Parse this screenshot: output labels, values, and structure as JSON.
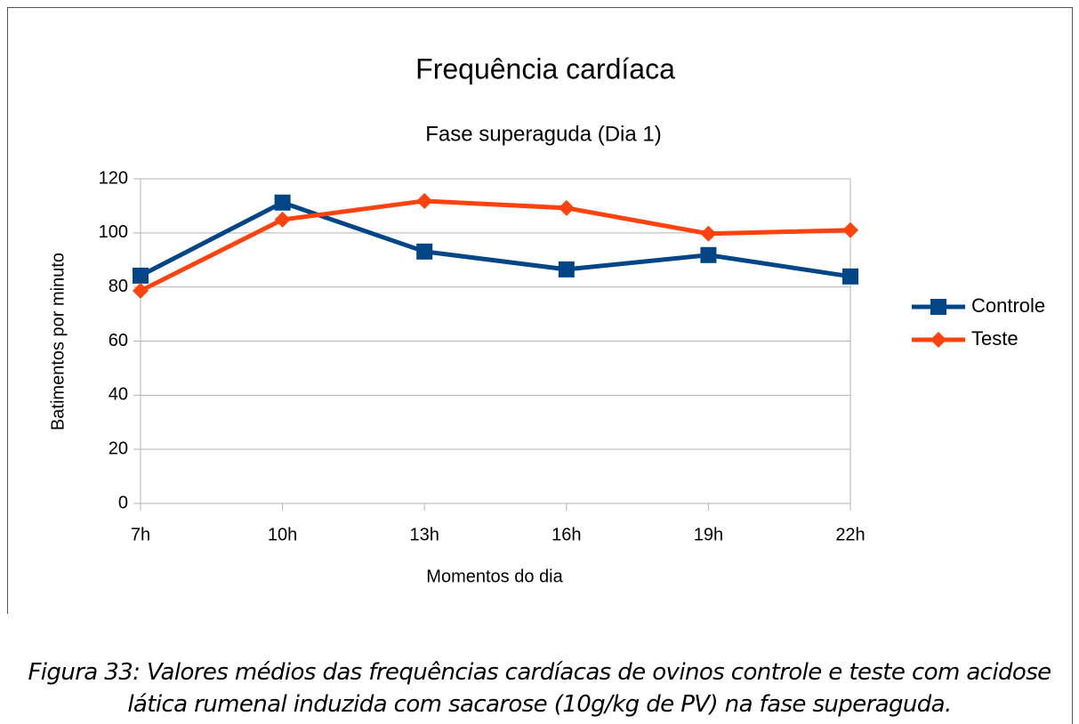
{
  "chart_data": {
    "type": "line",
    "title": "Frequência cardíaca",
    "subtitle": "Fase superaguda (Dia 1)",
    "x_label": "Momentos do dia",
    "y_label": "Batimentos por minuto",
    "categories": [
      "7h",
      "10h",
      "13h",
      "16h",
      "19h",
      "22h"
    ],
    "series": [
      {
        "name": "Controle",
        "color": "#004586",
        "marker": "square",
        "values": [
          84.2,
          111.2,
          93.1,
          86.5,
          91.8,
          83.9
        ]
      },
      {
        "name": "Teste",
        "color": "#ff420e",
        "marker": "diamond",
        "values": [
          78.6,
          104.9,
          111.8,
          109.2,
          99.7,
          101
        ]
      }
    ],
    "ylim": [
      0,
      120
    ],
    "yticks": [
      0,
      20,
      40,
      60,
      80,
      100,
      120
    ],
    "grid": true,
    "legend": "right"
  },
  "caption": "Figura 33: Valores médios das frequências cardíacas de ovinos controle e teste com acidose lática rumenal induzida com sacarose (10g/kg de PV) na fase superaguda."
}
